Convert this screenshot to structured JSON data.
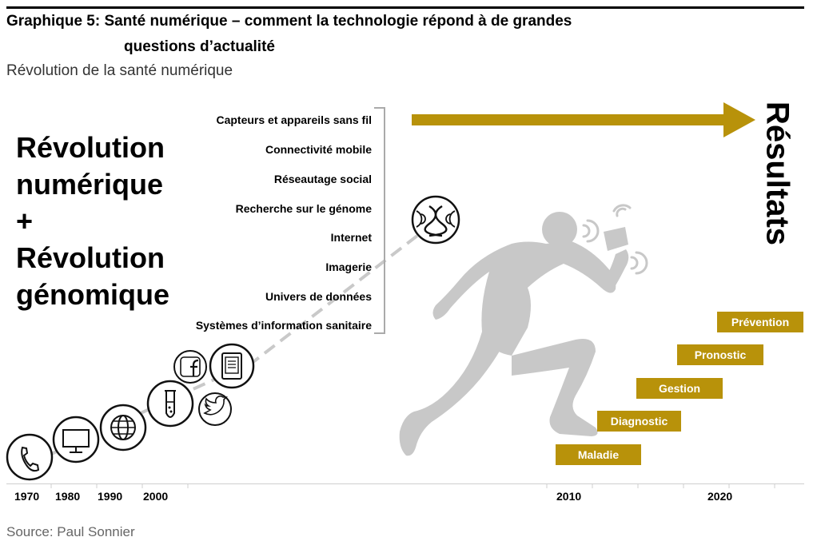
{
  "header": {
    "title_line1": "Graphique 5: Santé numérique – comment la technologie répond à de grandes",
    "title_line2": "questions d’actualité",
    "subtitle": "Révolution de la santé numérique"
  },
  "left_text": {
    "line1": "Révolution",
    "line2": "numérique",
    "line3": "+",
    "line4": "Révolution",
    "line5": "génomique"
  },
  "technologies": [
    "Capteurs et appareils sans fil",
    "Connectivité mobile",
    "Réseautage social",
    "Recherche sur le génome",
    "Internet",
    "Imagerie",
    "Univers de données",
    "Systèmes d’information sanitaire"
  ],
  "results_label": "Résultats",
  "stages": [
    "Maladie",
    "Diagnostic",
    "Gestion",
    "Pronostic",
    "Prévention"
  ],
  "years": [
    "1970",
    "1980",
    "1990",
    "2000",
    "2010",
    "2020"
  ],
  "source": "Source: Paul Sonnier",
  "icons": [
    "phone-icon",
    "computer-monitor-icon",
    "globe-icon",
    "test-tube-icon",
    "facebook-icon",
    "twitter-icon",
    "tablet-icon",
    "dna-icon",
    "runner-figure",
    "arrow-right-icon"
  ],
  "colors": {
    "gold": "#b8920a",
    "runner_gray": "#c8c8c8",
    "bracket_gray": "#aaaaaa",
    "dash_gray": "#c9c9c9"
  }
}
